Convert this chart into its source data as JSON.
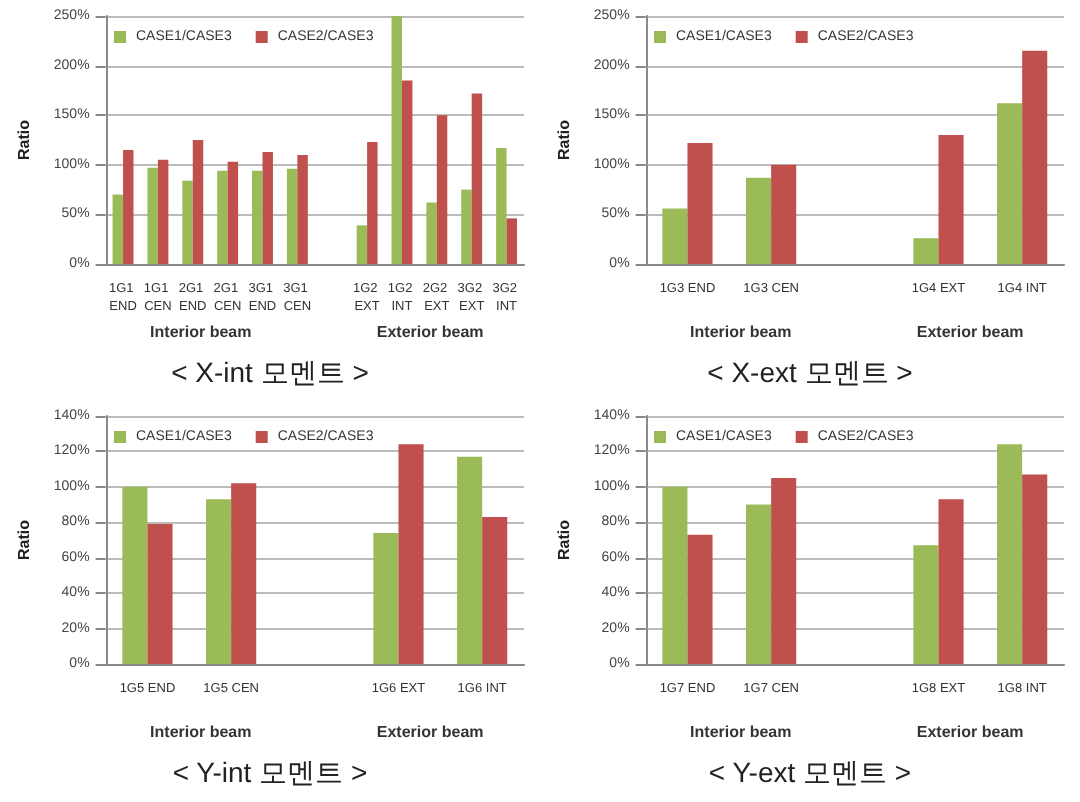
{
  "chart_data": [
    {
      "type": "bar",
      "title": "< X-int 모멘트 >",
      "ylabel": "Ratio",
      "categories": [
        "1G1 END",
        "1G1 CEN",
        "2G1 END",
        "2G1 CEN",
        "3G1 END",
        "3G1 CEN",
        null,
        "1G2 EXT",
        "1G2 INT",
        "2G2 EXT",
        "3G2 EXT",
        "3G2 INT"
      ],
      "series": [
        {
          "name": "CASE1/CASE3",
          "color": "#9bbb59",
          "values": [
            70,
            97,
            84,
            94,
            94,
            96,
            null,
            39,
            250,
            62,
            75,
            117
          ]
        },
        {
          "name": "CASE2/CASE3",
          "color": "#c0504d",
          "values": [
            115,
            105,
            125,
            103,
            113,
            110,
            null,
            123,
            185,
            150,
            172,
            46
          ]
        }
      ],
      "ylim": [
        0,
        250
      ],
      "yticks": [
        {
          "value": 0,
          "label": "0%"
        },
        {
          "value": 50,
          "label": "50%"
        },
        {
          "value": 100,
          "label": "100%"
        },
        {
          "value": 150,
          "label": "150%"
        },
        {
          "value": 200,
          "label": "200%"
        },
        {
          "value": 250,
          "label": "250%"
        }
      ],
      "annotations": [
        "Interior beam",
        "Exterior beam"
      ],
      "grid": "y",
      "legend": "top left"
    },
    {
      "type": "bar",
      "title": "< X-ext 모멘트 >",
      "ylabel": "Ratio",
      "categories": [
        "1G3 END",
        "1G3 CEN",
        null,
        "1G4 EXT",
        "1G4 INT"
      ],
      "series": [
        {
          "name": "CASE1/CASE3",
          "color": "#9bbb59",
          "values": [
            56,
            87,
            null,
            26,
            162
          ]
        },
        {
          "name": "CASE2/CASE3",
          "color": "#c0504d",
          "values": [
            122,
            100,
            null,
            130,
            215
          ]
        }
      ],
      "ylim": [
        0,
        250
      ],
      "yticks": [
        {
          "value": 0,
          "label": "0%"
        },
        {
          "value": 50,
          "label": "50%"
        },
        {
          "value": 100,
          "label": "100%"
        },
        {
          "value": 150,
          "label": "150%"
        },
        {
          "value": 200,
          "label": "200%"
        },
        {
          "value": 250,
          "label": "250%"
        }
      ],
      "annotations": [
        "Interior beam",
        "Exterior beam"
      ],
      "grid": "y",
      "legend": "top left"
    },
    {
      "type": "bar",
      "title": "< Y-int 모멘트 >",
      "ylabel": "Ratio",
      "categories": [
        "1G5 END",
        "1G5 CEN",
        null,
        "1G6 EXT",
        "1G6 INT"
      ],
      "series": [
        {
          "name": "CASE1/CASE3",
          "color": "#9bbb59",
          "values": [
            100,
            93,
            null,
            74,
            117
          ]
        },
        {
          "name": "CASE2/CASE3",
          "color": "#c0504d",
          "values": [
            79,
            102,
            null,
            124,
            83
          ]
        }
      ],
      "ylim": [
        0,
        140
      ],
      "yticks": [
        {
          "value": 0,
          "label": "0%"
        },
        {
          "value": 20,
          "label": "20%"
        },
        {
          "value": 40,
          "label": "40%"
        },
        {
          "value": 60,
          "label": "60%"
        },
        {
          "value": 80,
          "label": "80%"
        },
        {
          "value": 100,
          "label": "100%"
        },
        {
          "value": 120,
          "label": "120%"
        },
        {
          "value": 140,
          "label": "140%"
        }
      ],
      "annotations": [
        "Interior beam",
        "Exterior beam"
      ],
      "grid": "y",
      "legend": "top left"
    },
    {
      "type": "bar",
      "title": "< Y-ext 모멘트 >",
      "ylabel": "Ratio",
      "categories": [
        "1G7 END",
        "1G7 CEN",
        null,
        "1G8 EXT",
        "1G8 INT"
      ],
      "series": [
        {
          "name": "CASE1/CASE3",
          "color": "#9bbb59",
          "values": [
            100,
            90,
            null,
            67,
            124
          ]
        },
        {
          "name": "CASE2/CASE3",
          "color": "#c0504d",
          "values": [
            73,
            105,
            null,
            93,
            107
          ]
        }
      ],
      "ylim": [
        0,
        140
      ],
      "yticks": [
        {
          "value": 0,
          "label": "0%"
        },
        {
          "value": 20,
          "label": "20%"
        },
        {
          "value": 40,
          "label": "40%"
        },
        {
          "value": 60,
          "label": "60%"
        },
        {
          "value": 80,
          "label": "80%"
        },
        {
          "value": 100,
          "label": "100%"
        },
        {
          "value": 120,
          "label": "120%"
        },
        {
          "value": 140,
          "label": "140%"
        }
      ],
      "annotations": [
        "Interior beam",
        "Exterior beam"
      ],
      "grid": "y",
      "legend": "top left"
    }
  ]
}
